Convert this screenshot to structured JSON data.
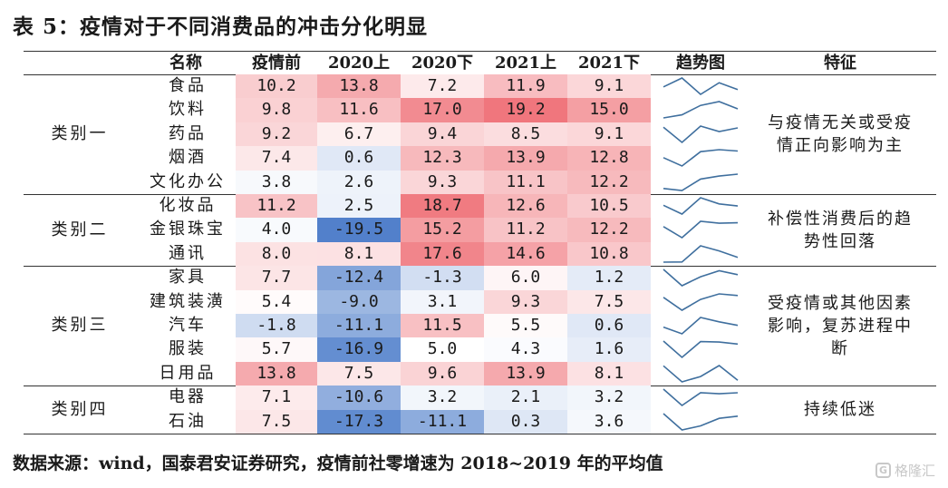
{
  "title": "表 5：疫情对于不同消费品的冲击分化明显",
  "headers": [
    "名称",
    "疫情前",
    "2020上",
    "2020下",
    "2021上",
    "2021下",
    "趋势图",
    "特征"
  ],
  "groups": [
    {
      "category": "类别一",
      "feature": "与疫情无关或受疫情正向影响为主",
      "feature_lines": [
        "与疫情无关或受疫",
        "情正向影响为主"
      ],
      "rows": [
        {
          "name": "食品",
          "values": [
            "10.2",
            "13.8",
            "7.2",
            "11.9",
            "9.1"
          ]
        },
        {
          "name": "饮料",
          "values": [
            "9.8",
            "11.6",
            "17.0",
            "19.2",
            "15.0"
          ]
        },
        {
          "name": "药品",
          "values": [
            "9.2",
            "6.7",
            "9.4",
            "8.5",
            "9.1"
          ]
        },
        {
          "name": "烟酒",
          "values": [
            "7.4",
            "0.6",
            "12.3",
            "13.9",
            "12.8"
          ]
        },
        {
          "name": "文化办公",
          "values": [
            "3.8",
            "2.6",
            "9.3",
            "11.1",
            "12.2"
          ]
        }
      ]
    },
    {
      "category": "类别二",
      "feature": "补偿性消费后的趋势性回落",
      "feature_lines": [
        "补偿性消费后的趋",
        "势性回落"
      ],
      "rows": [
        {
          "name": "化妆品",
          "values": [
            "11.2",
            "2.5",
            "18.7",
            "12.6",
            "10.5"
          ]
        },
        {
          "name": "金银珠宝",
          "values": [
            "4.0",
            "-19.5",
            "15.2",
            "11.2",
            "12.2"
          ]
        },
        {
          "name": "通讯",
          "values": [
            "8.0",
            "8.1",
            "17.6",
            "14.6",
            "10.8"
          ]
        }
      ]
    },
    {
      "category": "类别三",
      "feature": "受疫情或其他因素影响，复苏进程中断",
      "feature_lines": [
        "受疫情或其他因素",
        "影响，复苏进程中",
        "断"
      ],
      "rows": [
        {
          "name": "家具",
          "values": [
            "7.7",
            "-12.4",
            "-1.3",
            "6.0",
            "1.2"
          ]
        },
        {
          "name": "建筑装潢",
          "values": [
            "5.4",
            "-9.0",
            "3.1",
            "9.3",
            "7.5"
          ]
        },
        {
          "name": "汽车",
          "values": [
            "-1.8",
            "-11.1",
            "11.5",
            "5.5",
            "0.6"
          ]
        },
        {
          "name": "服装",
          "values": [
            "5.7",
            "-16.9",
            "5.0",
            "4.3",
            "1.6"
          ]
        },
        {
          "name": "日用品",
          "values": [
            "13.8",
            "7.5",
            "9.6",
            "13.9",
            "8.1"
          ]
        }
      ]
    },
    {
      "category": "类别四",
      "feature": "持续低迷",
      "feature_lines": [
        "持续低迷"
      ],
      "rows": [
        {
          "name": "电器",
          "values": [
            "7.1",
            "-10.6",
            "3.2",
            "2.1",
            "3.2"
          ]
        },
        {
          "name": "石油",
          "values": [
            "7.5",
            "-17.3",
            "-11.1",
            "0.3",
            "3.6"
          ]
        }
      ]
    }
  ],
  "footer": "数据来源：wind，国泰君安证券研究，疫情前社零增速为 2018~2019 年的平均值",
  "watermark": "格隆汇",
  "colors": {
    "negative": "#3a6fc4",
    "positive": "#e8323c",
    "neutral": "#ffffff",
    "sparkline": "#3f6f9e"
  }
}
